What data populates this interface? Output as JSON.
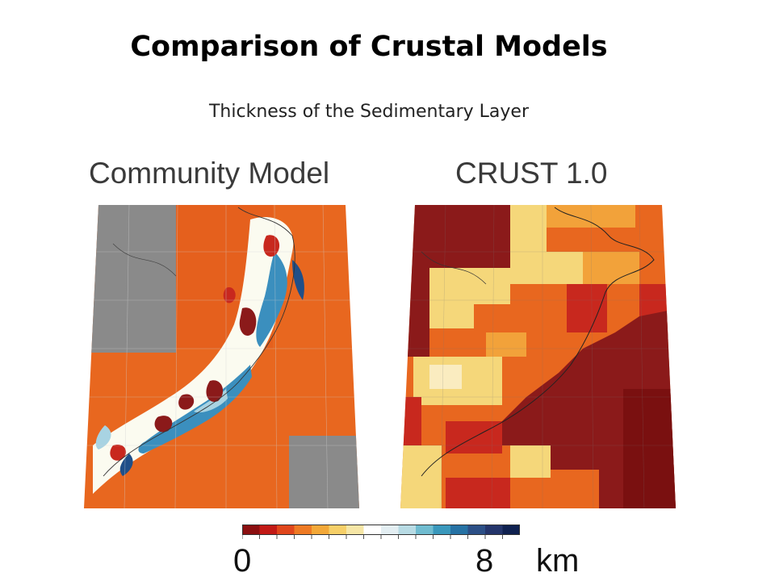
{
  "slide": {
    "title": "Comparison of Crustal Models",
    "subtitle": "Thickness of the Sedimentary Layer"
  },
  "maps": [
    {
      "title": "Community Model"
    },
    {
      "title": "CRUST 1.0"
    }
  ],
  "colorbar": {
    "min_label": "0",
    "max_label": "8",
    "unit": "km",
    "colors": [
      "#8b0f10",
      "#c21a16",
      "#e0461c",
      "#ee7a24",
      "#f3a838",
      "#f6cf68",
      "#f6e6a6",
      "#ffffff",
      "#e3eef2",
      "#b8dbe4",
      "#70bcd0",
      "#3a98bc",
      "#2672a4",
      "#2c4f86",
      "#24356b",
      "#0f2150"
    ]
  },
  "colors": {
    "land_mask": "#8a8a8a",
    "dark_red": "#8b1a1a",
    "red": "#c8281e",
    "orange": "#e8671f",
    "light_orange": "#f2a23a",
    "yellow": "#f5d77a",
    "white": "#fbfbf0",
    "light_blue": "#a8d3e2",
    "blue": "#3b8fbe",
    "dark_blue": "#1f4f88"
  }
}
